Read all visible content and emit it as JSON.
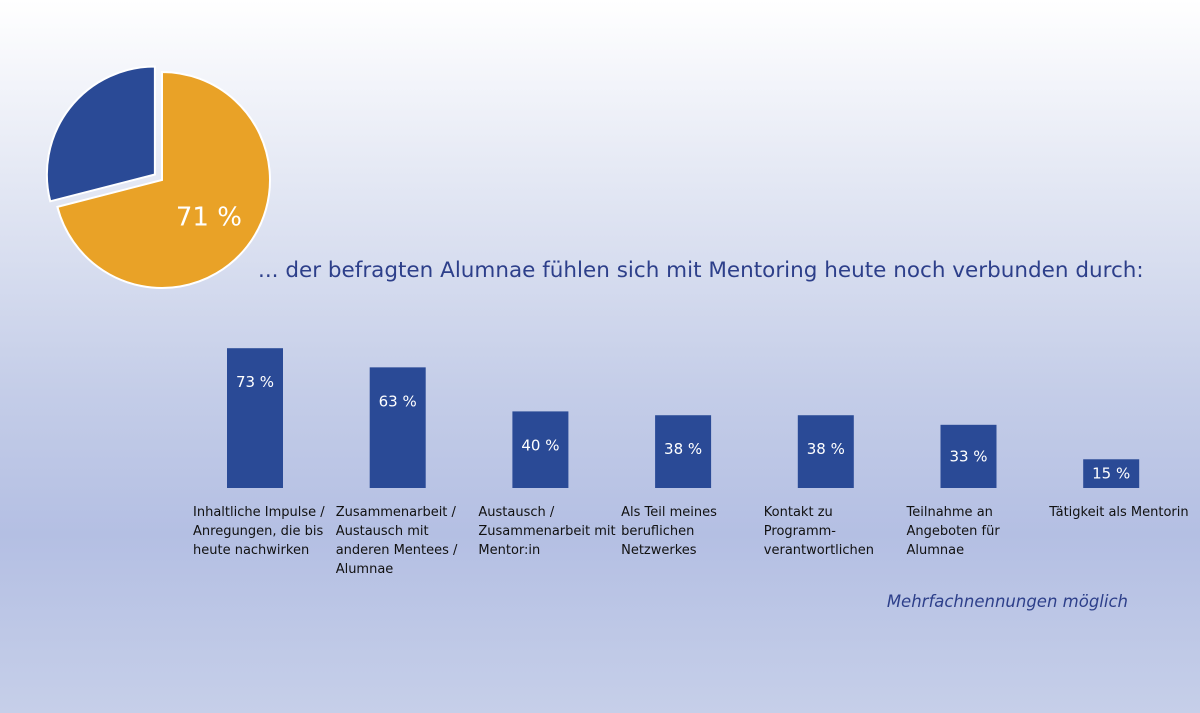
{
  "headline": "... der befragten Alumnae fühlen sich mit Mentoring heute noch verbunden durch:",
  "footnote": "Mehrfachnennungen möglich",
  "colors": {
    "bar": "#2a4a96",
    "pie_main": "#e9a227",
    "pie_rest": "#2a4a96",
    "text_accent": "#2d3f8a"
  },
  "chart_data": [
    {
      "type": "pie",
      "values": [
        71,
        29
      ],
      "labels": [
        "71 %",
        ""
      ],
      "exploded_slice": 1
    },
    {
      "type": "bar",
      "categories": [
        "Inhaltliche Impulse / Anregungen, die bis heute nachwirken",
        "Zusammenarbeit / Austausch mit anderen Mentees / Alumnae",
        "Austausch / Zusammenarbeit mit Mentor:in",
        "Als Teil meines beruflichen Netzwerkes",
        "Kontakt zu Programm-verantwortlichen",
        "Teilnahme an Angeboten für Alumnae",
        "Tätigkeit als Mentorin"
      ],
      "values": [
        73,
        63,
        40,
        38,
        38,
        33,
        15
      ],
      "data_labels": [
        "73 %",
        "63 %",
        "40 %",
        "38 %",
        "38 %",
        "33 %",
        "15 %"
      ],
      "unit": "%",
      "ylim": [
        0,
        100
      ],
      "grid": false,
      "axes_visible": false
    }
  ]
}
